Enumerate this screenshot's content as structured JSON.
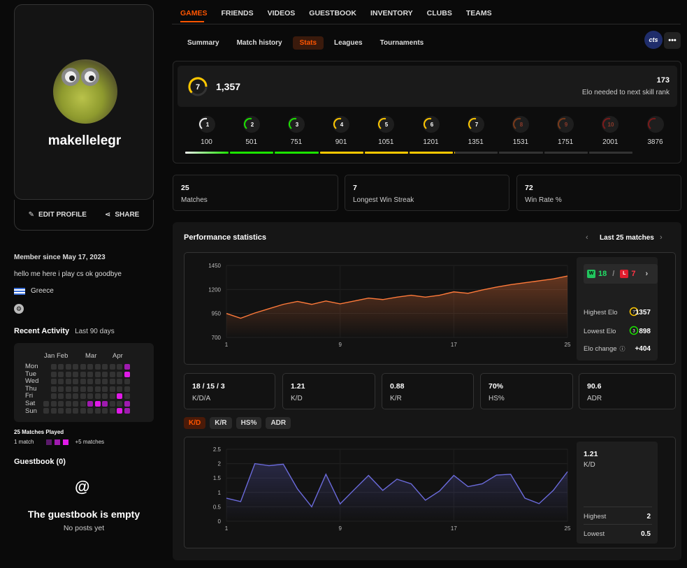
{
  "profile": {
    "username": "makellelegr",
    "edit_label": "EDIT PROFILE",
    "share_label": "SHARE"
  },
  "about": {
    "member_since": "Member since May 17, 2023",
    "bio": "hello me here i play cs ok goodbye",
    "country": "Greece"
  },
  "activity": {
    "title": "Recent Activity",
    "range": "Last 90 days",
    "months": [
      "Jan",
      "Feb",
      "Mar",
      "Apr"
    ],
    "days": [
      "Mon",
      "Tue",
      "Wed",
      "Thu",
      "Fri",
      "Sat",
      "Sun"
    ],
    "matches_played": "25 Matches Played",
    "legend_low": "1 match",
    "legend_high": "+5 matches"
  },
  "guestbook": {
    "title": "Guestbook (0)",
    "empty_title": "The guestbook is empty",
    "empty_sub": "No posts yet"
  },
  "nav": {
    "tabs": [
      "GAMES",
      "FRIENDS",
      "VIDEOS",
      "GUESTBOOK",
      "INVENTORY",
      "CLUBS",
      "TEAMS"
    ]
  },
  "subnav": {
    "tabs": [
      "Summary",
      "Match history",
      "Stats",
      "Leagues",
      "Tournaments"
    ],
    "selected": "Stats",
    "game_badge": "cts",
    "more": "•••"
  },
  "elo": {
    "level": "7",
    "value": "1,357",
    "to_next": "173",
    "to_next_label": "Elo needed to next skill rank",
    "levels": [
      {
        "n": "1",
        "v": "100",
        "color": "#eeeeee"
      },
      {
        "n": "2",
        "v": "501",
        "color": "#1ce400"
      },
      {
        "n": "3",
        "v": "751",
        "color": "#1ce400"
      },
      {
        "n": "4",
        "v": "901",
        "color": "#ffc800"
      },
      {
        "n": "5",
        "v": "1051",
        "color": "#ffc800"
      },
      {
        "n": "6",
        "v": "1201",
        "color": "#ffc800"
      },
      {
        "n": "7",
        "v": "1351",
        "color": "#ffc800"
      },
      {
        "n": "8",
        "v": "1531",
        "color": "#7a3a1a"
      },
      {
        "n": "9",
        "v": "1751",
        "color": "#7a3a1a"
      },
      {
        "n": "10",
        "v": "2001",
        "color": "#7a1a1a"
      },
      {
        "n": "",
        "v": "3876",
        "color": "#7a1a1a"
      }
    ]
  },
  "stats": [
    {
      "value": "25",
      "label": "Matches"
    },
    {
      "value": "7",
      "label": "Longest Win Streak"
    },
    {
      "value": "72",
      "label": "Win Rate %"
    }
  ],
  "performance": {
    "title": "Performance statistics",
    "range": "Last 25 matches",
    "wins": "18",
    "losses": "7",
    "w_badge": "W",
    "l_badge": "L",
    "separator": "/",
    "highest_label": "Highest Elo",
    "highest_value": "1357",
    "lowest_label": "Lowest Elo",
    "lowest_value": "898",
    "change_label": "Elo change",
    "change_value": "+404",
    "highest_level": "7",
    "lowest_level": "3"
  },
  "kda": [
    {
      "value": "18 / 15 / 3",
      "label": "K/D/A"
    },
    {
      "value": "1.21",
      "label": "K/D"
    },
    {
      "value": "0.88",
      "label": "K/R"
    },
    {
      "value": "70%",
      "label": "HS%"
    },
    {
      "value": "90.6",
      "label": "ADR"
    }
  ],
  "metric_tabs": [
    "K/D",
    "K/R",
    "HS%",
    "ADR"
  ],
  "kd_side": {
    "value": "1.21",
    "label": "K/D",
    "highest_label": "Highest",
    "highest": "2",
    "lowest_label": "Lowest",
    "lowest": "0.5"
  },
  "chart_data": [
    {
      "type": "area",
      "x": [
        1,
        2,
        3,
        4,
        5,
        6,
        7,
        8,
        9,
        10,
        11,
        12,
        13,
        14,
        15,
        16,
        17,
        18,
        19,
        20,
        21,
        22,
        23,
        24,
        25
      ],
      "xticks": [
        "1",
        "9",
        "17",
        "25"
      ],
      "yticks": [
        "700",
        "950",
        "1200",
        "1450"
      ],
      "ylim": [
        700,
        1450
      ],
      "values": [
        950,
        900,
        955,
        1000,
        1045,
        1075,
        1045,
        1080,
        1050,
        1080,
        1110,
        1095,
        1120,
        1140,
        1120,
        1140,
        1175,
        1160,
        1195,
        1225,
        1250,
        1270,
        1290,
        1310,
        1340
      ],
      "color": "#ff7a3a"
    },
    {
      "type": "line",
      "x": [
        1,
        2,
        3,
        4,
        5,
        6,
        7,
        8,
        9,
        10,
        11,
        12,
        13,
        14,
        15,
        16,
        17,
        18,
        19,
        20,
        21,
        22,
        23,
        24,
        25
      ],
      "xticks": [
        "1",
        "9",
        "17",
        "25"
      ],
      "yticks": [
        "0",
        "0.5",
        "1",
        "1.5",
        "2",
        "2.5"
      ],
      "ylim": [
        0,
        2.5
      ],
      "values": [
        0.8,
        0.68,
        2.0,
        1.93,
        1.98,
        1.12,
        0.5,
        1.63,
        0.6,
        1.1,
        1.59,
        1.07,
        1.46,
        1.3,
        0.73,
        1.05,
        1.59,
        1.2,
        1.3,
        1.6,
        1.63,
        0.8,
        0.61,
        1.07,
        1.72
      ],
      "color": "#6b6bdc"
    }
  ]
}
